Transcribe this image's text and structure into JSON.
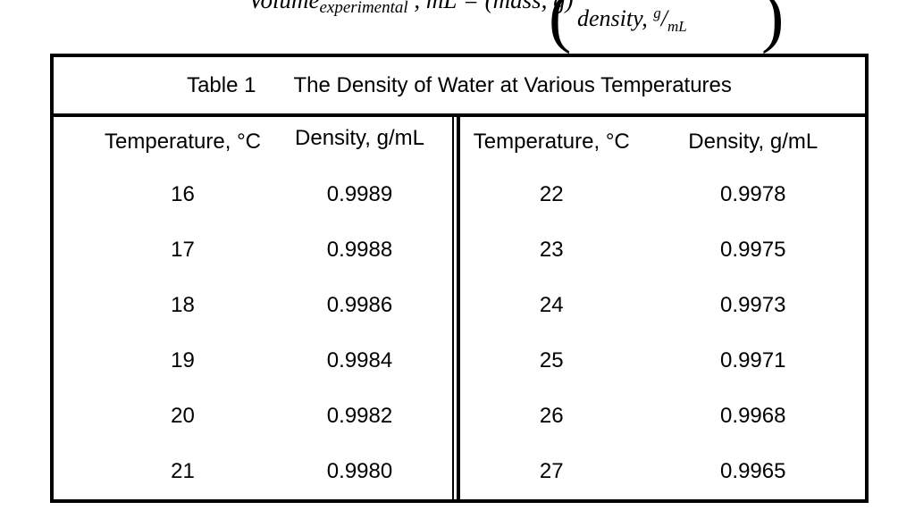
{
  "formula": {
    "lhs_volume": "Volume",
    "lhs_subscript": "experimental",
    "lhs_rest": " , mL = (mass, g)",
    "open_paren": "(",
    "close_paren": ")",
    "denominator_prefix": "density, ",
    "denominator_num": "g",
    "denominator_slash": "/",
    "denominator_den": "mL"
  },
  "table": {
    "title_label": "Table 1",
    "title": "The Density of Water at Various Temperatures",
    "panels": [
      {
        "headers": [
          "Temperature, °C",
          "Density, g/mL"
        ],
        "rows": [
          [
            "16",
            "0.9989"
          ],
          [
            "17",
            "0.9988"
          ],
          [
            "18",
            "0.9986"
          ],
          [
            "19",
            "0.9984"
          ],
          [
            "20",
            "0.9982"
          ],
          [
            "21",
            "0.9980"
          ]
        ]
      },
      {
        "headers": [
          "Temperature, °C",
          "Density, g/mL"
        ],
        "rows": [
          [
            "22",
            "0.9978"
          ],
          [
            "23",
            "0.9975"
          ],
          [
            "24",
            "0.9973"
          ],
          [
            "25",
            "0.9971"
          ],
          [
            "26",
            "0.9968"
          ],
          [
            "27",
            "0.9965"
          ]
        ]
      }
    ]
  }
}
